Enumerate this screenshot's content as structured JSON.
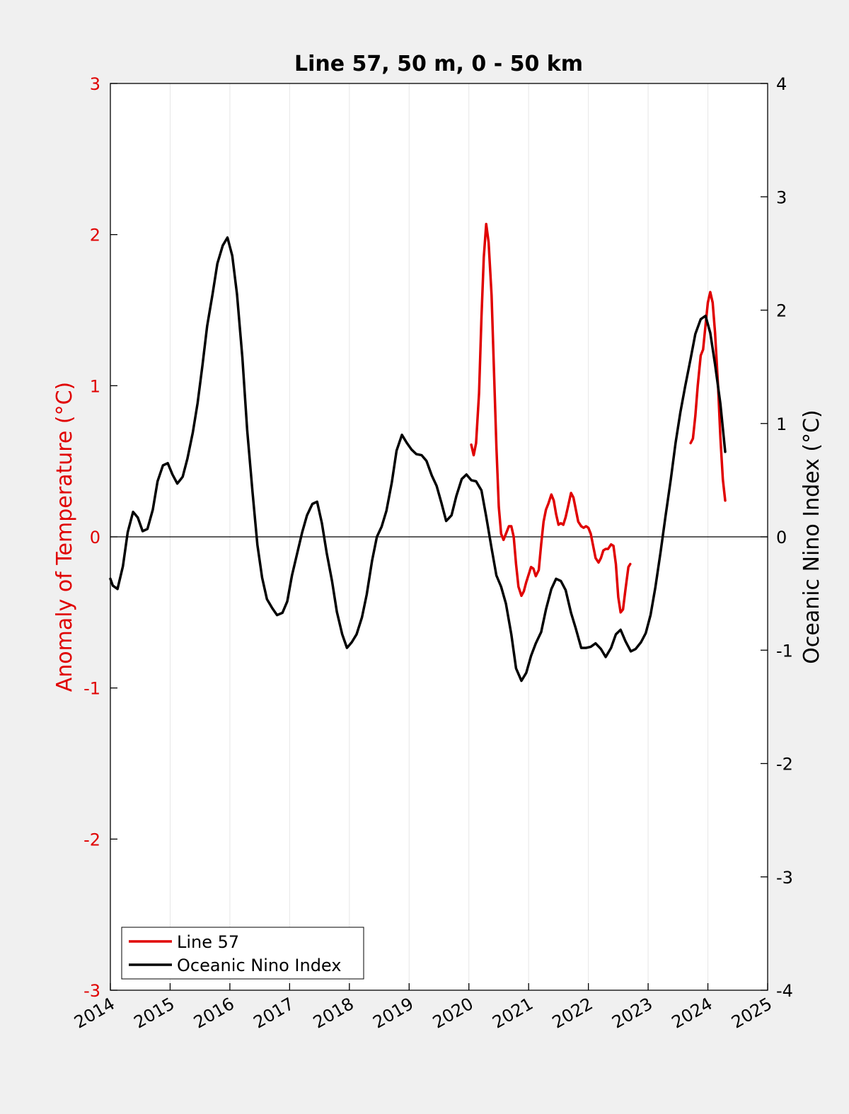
{
  "chart_data": {
    "type": "line",
    "title": "Line 57, 50 m, 0 - 50 km",
    "xlabel": "",
    "ylabel_left": "Anomaly of Temperature (°C)",
    "ylabel_right": "Oceanic Nino Index (°C)",
    "xlim": [
      2014,
      2025
    ],
    "ylim_left": [
      -3,
      3
    ],
    "ylim_right": [
      -4,
      4
    ],
    "x_ticks": [
      2014,
      2015,
      2016,
      2017,
      2018,
      2019,
      2020,
      2021,
      2022,
      2023,
      2024,
      2025
    ],
    "x_tick_labels": [
      "2014",
      "2015",
      "2016",
      "2017",
      "2018",
      "2019",
      "2020",
      "2021",
      "2022",
      "2023",
      "2024",
      "2025"
    ],
    "y_left_ticks": [
      3,
      2,
      1,
      0,
      -1,
      -2,
      -3
    ],
    "y_left_tick_labels": [
      "3",
      "2",
      "1",
      "0",
      "-1",
      "-2",
      "-3"
    ],
    "y_right_ticks": [
      4,
      3,
      2,
      1,
      0,
      -1,
      -2,
      -3,
      -4
    ],
    "y_right_tick_labels": [
      "4",
      "3",
      "2",
      "1",
      "0",
      "-1",
      "-2",
      "-3",
      "-4"
    ],
    "grid": "vertical",
    "zero_line": true,
    "legend_position": "bottom-left",
    "series": [
      {
        "name": "Line 57",
        "axis": "left",
        "color": "#e00000",
        "segments": [
          [
            [
              2020.04,
              0.61
            ],
            [
              2020.08,
              0.54
            ],
            [
              2020.12,
              0.62
            ],
            [
              2020.17,
              0.95
            ],
            [
              2020.21,
              1.45
            ],
            [
              2020.25,
              1.85
            ],
            [
              2020.29,
              2.07
            ],
            [
              2020.33,
              1.95
            ],
            [
              2020.38,
              1.6
            ],
            [
              2020.42,
              1.1
            ],
            [
              2020.46,
              0.6
            ],
            [
              2020.5,
              0.2
            ],
            [
              2020.54,
              0.02
            ],
            [
              2020.58,
              -0.02
            ],
            [
              2020.62,
              0.02
            ],
            [
              2020.67,
              0.07
            ],
            [
              2020.71,
              0.07
            ],
            [
              2020.75,
              0.0
            ],
            [
              2020.79,
              -0.18
            ],
            [
              2020.83,
              -0.33
            ],
            [
              2020.88,
              -0.39
            ],
            [
              2020.92,
              -0.36
            ],
            [
              2020.96,
              -0.3
            ],
            [
              2021.0,
              -0.25
            ],
            [
              2021.04,
              -0.2
            ],
            [
              2021.08,
              -0.21
            ],
            [
              2021.12,
              -0.26
            ],
            [
              2021.17,
              -0.22
            ],
            [
              2021.21,
              -0.05
            ],
            [
              2021.25,
              0.1
            ],
            [
              2021.29,
              0.18
            ],
            [
              2021.33,
              0.22
            ],
            [
              2021.38,
              0.28
            ],
            [
              2021.42,
              0.24
            ],
            [
              2021.46,
              0.15
            ],
            [
              2021.5,
              0.08
            ],
            [
              2021.54,
              0.09
            ],
            [
              2021.58,
              0.08
            ],
            [
              2021.62,
              0.13
            ],
            [
              2021.67,
              0.22
            ],
            [
              2021.71,
              0.29
            ],
            [
              2021.75,
              0.26
            ],
            [
              2021.79,
              0.18
            ],
            [
              2021.83,
              0.1
            ],
            [
              2021.88,
              0.07
            ],
            [
              2021.92,
              0.06
            ],
            [
              2021.96,
              0.07
            ],
            [
              2022.0,
              0.06
            ],
            [
              2022.04,
              0.02
            ],
            [
              2022.08,
              -0.06
            ],
            [
              2022.12,
              -0.14
            ],
            [
              2022.17,
              -0.17
            ],
            [
              2022.21,
              -0.14
            ],
            [
              2022.25,
              -0.09
            ],
            [
              2022.29,
              -0.08
            ],
            [
              2022.33,
              -0.08
            ],
            [
              2022.38,
              -0.05
            ],
            [
              2022.42,
              -0.06
            ],
            [
              2022.46,
              -0.18
            ],
            [
              2022.5,
              -0.4
            ],
            [
              2022.54,
              -0.5
            ],
            [
              2022.58,
              -0.48
            ],
            [
              2022.62,
              -0.35
            ],
            [
              2022.67,
              -0.2
            ],
            [
              2022.7,
              -0.18
            ]
          ],
          [
            [
              2023.71,
              0.62
            ],
            [
              2023.75,
              0.65
            ],
            [
              2023.79,
              0.8
            ],
            [
              2023.83,
              1.0
            ],
            [
              2023.88,
              1.2
            ],
            [
              2023.92,
              1.24
            ],
            [
              2023.96,
              1.4
            ],
            [
              2024.0,
              1.55
            ],
            [
              2024.04,
              1.62
            ],
            [
              2024.08,
              1.55
            ],
            [
              2024.12,
              1.35
            ],
            [
              2024.17,
              1.0
            ],
            [
              2024.21,
              0.65
            ],
            [
              2024.25,
              0.38
            ],
            [
              2024.29,
              0.24
            ]
          ]
        ]
      },
      {
        "name": "Oceanic Nino Index",
        "axis": "right",
        "color": "#000000",
        "segments": [
          [
            [
              2014.0,
              -0.37
            ],
            [
              2014.04,
              -0.43
            ],
            [
              2014.12,
              -0.46
            ],
            [
              2014.21,
              -0.26
            ],
            [
              2014.29,
              0.04
            ],
            [
              2014.38,
              0.22
            ],
            [
              2014.46,
              0.17
            ],
            [
              2014.54,
              0.05
            ],
            [
              2014.62,
              0.07
            ],
            [
              2014.71,
              0.24
            ],
            [
              2014.79,
              0.49
            ],
            [
              2014.88,
              0.63
            ],
            [
              2014.96,
              0.65
            ],
            [
              2015.04,
              0.55
            ],
            [
              2015.12,
              0.47
            ],
            [
              2015.21,
              0.53
            ],
            [
              2015.29,
              0.69
            ],
            [
              2015.38,
              0.92
            ],
            [
              2015.46,
              1.18
            ],
            [
              2015.54,
              1.51
            ],
            [
              2015.62,
              1.86
            ],
            [
              2015.71,
              2.14
            ],
            [
              2015.79,
              2.41
            ],
            [
              2015.88,
              2.57
            ],
            [
              2015.96,
              2.64
            ],
            [
              2016.04,
              2.48
            ],
            [
              2016.12,
              2.14
            ],
            [
              2016.21,
              1.58
            ],
            [
              2016.29,
              0.94
            ],
            [
              2016.38,
              0.39
            ],
            [
              2016.46,
              -0.07
            ],
            [
              2016.54,
              -0.36
            ],
            [
              2016.62,
              -0.55
            ],
            [
              2016.71,
              -0.63
            ],
            [
              2016.79,
              -0.69
            ],
            [
              2016.88,
              -0.67
            ],
            [
              2016.96,
              -0.57
            ],
            [
              2017.04,
              -0.34
            ],
            [
              2017.12,
              -0.16
            ],
            [
              2017.21,
              0.04
            ],
            [
              2017.29,
              0.19
            ],
            [
              2017.38,
              0.29
            ],
            [
              2017.46,
              0.31
            ],
            [
              2017.54,
              0.12
            ],
            [
              2017.62,
              -0.14
            ],
            [
              2017.71,
              -0.39
            ],
            [
              2017.79,
              -0.66
            ],
            [
              2017.88,
              -0.86
            ],
            [
              2017.96,
              -0.98
            ],
            [
              2018.04,
              -0.93
            ],
            [
              2018.12,
              -0.86
            ],
            [
              2018.21,
              -0.71
            ],
            [
              2018.29,
              -0.51
            ],
            [
              2018.38,
              -0.21
            ],
            [
              2018.46,
              0.0
            ],
            [
              2018.54,
              0.09
            ],
            [
              2018.62,
              0.23
            ],
            [
              2018.71,
              0.48
            ],
            [
              2018.79,
              0.76
            ],
            [
              2018.88,
              0.9
            ],
            [
              2018.96,
              0.83
            ],
            [
              2019.04,
              0.77
            ],
            [
              2019.12,
              0.73
            ],
            [
              2019.21,
              0.72
            ],
            [
              2019.29,
              0.67
            ],
            [
              2019.38,
              0.54
            ],
            [
              2019.46,
              0.45
            ],
            [
              2019.54,
              0.3
            ],
            [
              2019.62,
              0.14
            ],
            [
              2019.71,
              0.19
            ],
            [
              2019.79,
              0.36
            ],
            [
              2019.88,
              0.51
            ],
            [
              2019.96,
              0.55
            ],
            [
              2020.04,
              0.5
            ],
            [
              2020.12,
              0.49
            ],
            [
              2020.21,
              0.41
            ],
            [
              2020.29,
              0.18
            ],
            [
              2020.38,
              -0.1
            ],
            [
              2020.46,
              -0.34
            ],
            [
              2020.54,
              -0.44
            ],
            [
              2020.62,
              -0.59
            ],
            [
              2020.71,
              -0.86
            ],
            [
              2020.79,
              -1.16
            ],
            [
              2020.88,
              -1.27
            ],
            [
              2020.96,
              -1.2
            ],
            [
              2021.04,
              -1.05
            ],
            [
              2021.12,
              -0.94
            ],
            [
              2021.21,
              -0.84
            ],
            [
              2021.29,
              -0.64
            ],
            [
              2021.38,
              -0.46
            ],
            [
              2021.46,
              -0.37
            ],
            [
              2021.54,
              -0.39
            ],
            [
              2021.62,
              -0.47
            ],
            [
              2021.71,
              -0.67
            ],
            [
              2021.79,
              -0.81
            ],
            [
              2021.88,
              -0.98
            ],
            [
              2021.96,
              -0.98
            ],
            [
              2022.04,
              -0.97
            ],
            [
              2022.12,
              -0.94
            ],
            [
              2022.21,
              -0.99
            ],
            [
              2022.29,
              -1.06
            ],
            [
              2022.38,
              -0.98
            ],
            [
              2022.46,
              -0.86
            ],
            [
              2022.54,
              -0.82
            ],
            [
              2022.62,
              -0.92
            ],
            [
              2022.71,
              -1.01
            ],
            [
              2022.79,
              -0.99
            ],
            [
              2022.88,
              -0.93
            ],
            [
              2022.96,
              -0.85
            ],
            [
              2023.04,
              -0.69
            ],
            [
              2023.12,
              -0.45
            ],
            [
              2023.21,
              -0.13
            ],
            [
              2023.29,
              0.18
            ],
            [
              2023.38,
              0.51
            ],
            [
              2023.46,
              0.83
            ],
            [
              2023.54,
              1.1
            ],
            [
              2023.62,
              1.33
            ],
            [
              2023.71,
              1.57
            ],
            [
              2023.79,
              1.79
            ],
            [
              2023.88,
              1.92
            ],
            [
              2023.96,
              1.95
            ],
            [
              2024.04,
              1.8
            ],
            [
              2024.12,
              1.52
            ],
            [
              2024.21,
              1.17
            ],
            [
              2024.29,
              0.75
            ]
          ]
        ]
      }
    ]
  }
}
